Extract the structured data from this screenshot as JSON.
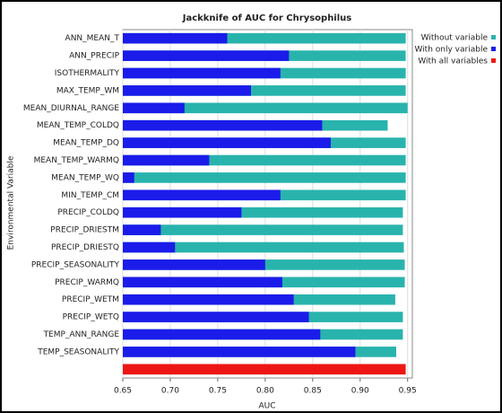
{
  "chart_data": {
    "type": "jackknife",
    "title": "Jackknife of AUC for Chrysophilus",
    "x_label": "AUC",
    "y_label": "Environmental Variable",
    "categories": [
      "ANN_MEAN_T",
      "ANN_PRECIP",
      "ISOTHERMALITY",
      "MAX_TEMP_WM",
      "MEAN_DIURNAL_RANGE",
      "MEAN_TEMP_COLDQ",
      "MEAN_TEMP_DQ",
      "MEAN_TEMP_WARMQ",
      "MEAN_TEMP_WQ",
      "MIN_TEMP_CM",
      "PRECIP_COLDQ",
      "PRECIP_DRIESTM",
      "PRECIP_DRIESTQ",
      "PRECIP_SEASONALITY",
      "PRECIP_WARMQ",
      "PRECIP_WETM",
      "PRECIP_WETQ",
      "TEMP_ANN_RANGE",
      "TEMP_SEASONALITY",
      null
    ],
    "series": [
      {
        "name": "Without variable",
        "color": "#29b3ad",
        "values": [
          0.948,
          0.948,
          0.948,
          0.948,
          0.95,
          0.929,
          0.948,
          0.948,
          0.948,
          0.948,
          0.945,
          0.945,
          0.946,
          0.947,
          0.947,
          0.937,
          0.945,
          0.945,
          0.938,
          null
        ]
      },
      {
        "name": "With only variable",
        "color": "#1b1bea",
        "values": [
          0.76,
          0.825,
          0.816,
          0.785,
          0.715,
          0.86,
          0.869,
          0.741,
          0.662,
          0.816,
          0.775,
          0.69,
          0.705,
          0.8,
          0.818,
          0.83,
          0.846,
          0.858,
          0.895,
          null
        ]
      },
      {
        "name": "With all variables",
        "color": "#ee1515",
        "values": [
          null,
          null,
          null,
          null,
          null,
          null,
          null,
          null,
          null,
          null,
          null,
          null,
          null,
          null,
          null,
          null,
          null,
          null,
          null,
          0.948
        ]
      }
    ],
    "xlim": [
      0.65,
      0.955
    ],
    "xticks": [
      0.65,
      {
        "value": 0.7,
        "label": "0.70"
      },
      0.75,
      {
        "value": 0.8,
        "label": "0.80"
      },
      0.85,
      {
        "value": 0.9,
        "label": "0.90"
      },
      0.95
    ],
    "grid": true
  }
}
